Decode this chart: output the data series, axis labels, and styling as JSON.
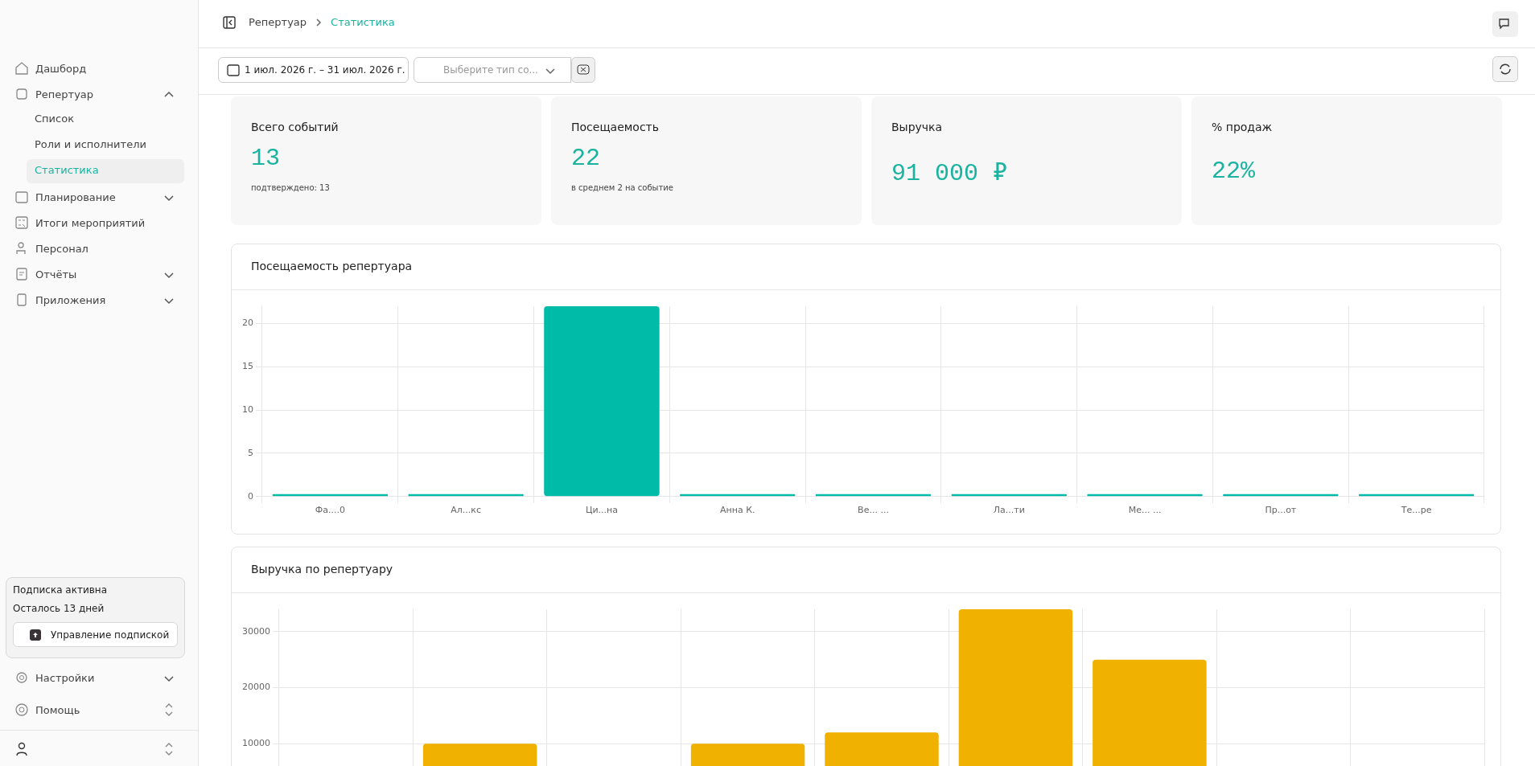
{
  "chart_data": [
    {
      "type": "other",
      "title": "Всего событий",
      "annotations": [
        "13",
        "подтверждено: 13"
      ]
    },
    {
      "type": "other",
      "title": "Посещаемость",
      "annotations": [
        "22",
        "в среднем 2 на событие"
      ]
    },
    {
      "type": "other",
      "title": "Выручка",
      "annotations": [
        "91 000 ₽"
      ]
    },
    {
      "type": "other",
      "title": "% продаж",
      "annotations": [
        "22%"
      ]
    },
    {
      "type": "bar",
      "title": "Посещаемость репертуара",
      "categories": [
        "Фа....0",
        "Ал...кс",
        "Ци...на",
        "Анна К.",
        "Ве... ...",
        "Ла...ти",
        "Ме... ...",
        "Пр...от",
        "Те...ре"
      ],
      "values": [
        0,
        0,
        22,
        0,
        0,
        0,
        0,
        0,
        0
      ],
      "color": "#00bba7",
      "ylim": [
        0,
        22
      ],
      "yticks": [
        0,
        5,
        10,
        15,
        20
      ],
      "grid": true
    },
    {
      "type": "bar",
      "title": "Выручка по репертуару",
      "categories": [
        null,
        null,
        null,
        null,
        null,
        null,
        null,
        null,
        null
      ],
      "values": [
        0,
        10000,
        0,
        10000,
        12000,
        34000,
        25000,
        0,
        0
      ],
      "color": "#f0b100",
      "ylim": [
        0,
        34000
      ],
      "yticks": [
        10000,
        20000,
        30000
      ],
      "grid": true
    },
    {
      "type": "other",
      "annotations": [
        "Дашборд",
        "Репертуар",
        "Список",
        "Роли и исполнители",
        "Статистика",
        "Планирование",
        "Итоги мероприятий",
        "Персонал",
        "Отчёты",
        "Приложения",
        "Подписка активна",
        "Осталось 13 дней",
        "Управление подпиской",
        "Настройки",
        "Помощь",
        "Репертуар",
        "Статистика",
        "1 июл. 2026 г. – 31 июл. 2026 г.",
        "Выберите тип со..."
      ]
    }
  ]
}
